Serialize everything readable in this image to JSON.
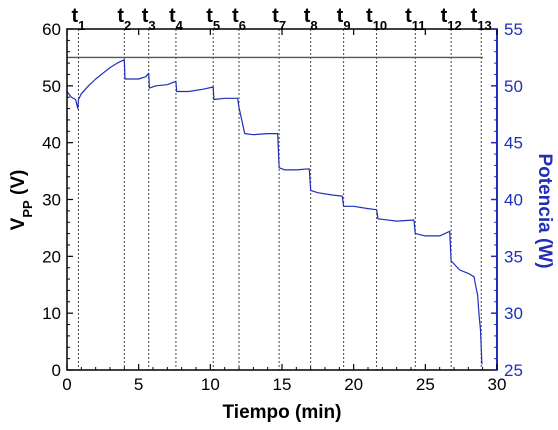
{
  "chart_data": {
    "type": "line",
    "xlabel": "Tiempo (min)",
    "ylabel_main": "V",
    "ylabel_sub": "PP",
    "ylabel_unit": " (V)",
    "y2label": "Potencia (W)",
    "xlim": [
      0,
      30
    ],
    "ylim": [
      0,
      60
    ],
    "y2lim": [
      25,
      55
    ],
    "x_ticks": [
      "0",
      "5",
      "10",
      "15",
      "20",
      "25",
      "30"
    ],
    "y_ticks": [
      "0",
      "10",
      "20",
      "30",
      "40",
      "50",
      "60"
    ],
    "y2_ticks": [
      "25",
      "30",
      "35",
      "40",
      "45",
      "50",
      "55"
    ],
    "reference_line": {
      "axis": "y",
      "value": 55,
      "color": "#555555"
    },
    "event_markers": [
      {
        "label": "t",
        "sub": "1",
        "x": 0.8
      },
      {
        "label": "t",
        "sub": "2",
        "x": 4.0
      },
      {
        "label": "t",
        "sub": "3",
        "x": 5.7
      },
      {
        "label": "t",
        "sub": "4",
        "x": 7.6
      },
      {
        "label": "t",
        "sub": "5",
        "x": 10.2
      },
      {
        "label": "t",
        "sub": "6",
        "x": 12.0
      },
      {
        "label": "t",
        "sub": "7",
        "x": 14.8
      },
      {
        "label": "t",
        "sub": "8",
        "x": 17.0
      },
      {
        "label": "t",
        "sub": "9",
        "x": 19.3
      },
      {
        "label": "t",
        "sub": "10",
        "x": 21.6
      },
      {
        "label": "t",
        "sub": "11",
        "x": 24.3
      },
      {
        "label": "t",
        "sub": "12",
        "x": 26.8
      },
      {
        "label": "t",
        "sub": "13",
        "x": 28.9
      }
    ],
    "series": [
      {
        "axis": "y2",
        "color": "#1f2fb8",
        "x": [
          0.0,
          0.3,
          0.6,
          0.75,
          0.8,
          1.0,
          1.5,
          2.0,
          2.5,
          3.0,
          3.5,
          4.0,
          4.05,
          4.5,
          5.0,
          5.5,
          5.7,
          5.75,
          6.2,
          7.0,
          7.6,
          7.65,
          8.5,
          9.5,
          10.2,
          10.25,
          11.0,
          11.9,
          12.0,
          12.4,
          13.0,
          14.0,
          14.7,
          14.8,
          15.2,
          16.0,
          16.9,
          17.0,
          17.5,
          18.5,
          19.2,
          19.3,
          20.0,
          21.0,
          21.6,
          21.7,
          23.0,
          24.2,
          24.3,
          25.0,
          26.0,
          26.7,
          26.8,
          27.4,
          28.0,
          28.4,
          28.5,
          28.65,
          28.75,
          28.85,
          28.95
        ],
        "y": [
          49.5,
          49.0,
          48.8,
          48.0,
          48.8,
          49.3,
          50.0,
          50.6,
          51.1,
          51.6,
          52.0,
          52.3,
          50.6,
          50.6,
          50.6,
          50.8,
          51.1,
          49.8,
          50.0,
          50.1,
          50.4,
          49.5,
          49.5,
          49.7,
          49.9,
          48.8,
          48.9,
          48.9,
          48.1,
          45.8,
          45.7,
          45.8,
          45.8,
          42.8,
          42.6,
          42.6,
          42.7,
          40.8,
          40.6,
          40.4,
          40.3,
          39.4,
          39.4,
          39.2,
          39.1,
          38.3,
          38.1,
          38.2,
          37.0,
          36.8,
          36.8,
          37.2,
          34.6,
          33.8,
          33.5,
          33.2,
          32.5,
          31.6,
          29.8,
          28.5,
          25.5
        ]
      }
    ]
  }
}
